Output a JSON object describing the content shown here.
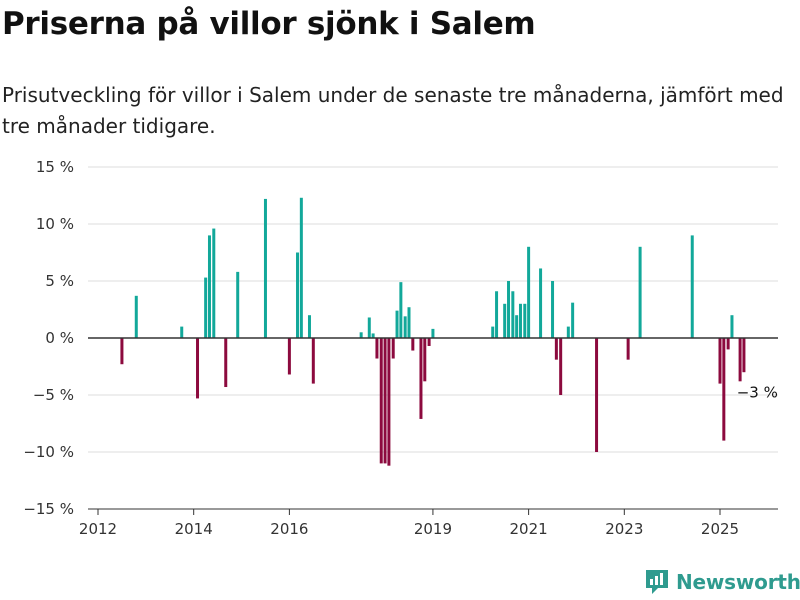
{
  "title": "Priserna på villor sjönk i Salem",
  "subtitle": "Prisutveckling för villor i Salem under de senaste tre månaderna, jämfört med tre månader tidigare.",
  "brand": {
    "name": "Newsworthy",
    "icon": "newsworthy-logo-icon"
  },
  "colors": {
    "positive": "#12a89a",
    "negative": "#8c0a3e",
    "grid": "#dddddd",
    "axis": "#333333"
  },
  "chart_data": {
    "type": "bar",
    "title": "Priserna på villor sjönk i Salem",
    "subtitle": "Prisutveckling för villor i Salem under de senaste tre månaderna, jämfört med tre månader tidigare.",
    "xlabel": "",
    "ylabel": "",
    "ylim": [
      -15,
      15
    ],
    "xlim": [
      2011.9,
      2026.2
    ],
    "y_ticks": [
      15,
      10,
      5,
      0,
      -5,
      -10,
      -15
    ],
    "y_tick_labels": [
      "15 %",
      "10 %",
      "5 %",
      "0 %",
      "−5 %",
      "−10 %",
      "−15 %"
    ],
    "x_ticks": [
      2012,
      2014,
      2016,
      2019,
      2021,
      2023,
      2025
    ],
    "x_tick_labels": [
      "2012",
      "2014",
      "2016",
      "2019",
      "2021",
      "2023",
      "2025"
    ],
    "grid": true,
    "annotation": {
      "text": "−3 %",
      "x": 2025.6,
      "y": -3
    },
    "x": [
      2012.5,
      2012.8,
      2013.75,
      2014.08,
      2014.25,
      2014.33,
      2014.42,
      2014.67,
      2014.92,
      2015.5,
      2016.0,
      2016.17,
      2016.25,
      2016.42,
      2016.5,
      2017.5,
      2017.67,
      2017.75,
      2017.83,
      2017.92,
      2018.0,
      2018.08,
      2018.17,
      2018.25,
      2018.33,
      2018.42,
      2018.5,
      2018.58,
      2018.75,
      2018.83,
      2018.92,
      2019.0,
      2020.25,
      2020.33,
      2020.5,
      2020.58,
      2020.67,
      2020.75,
      2020.83,
      2020.92,
      2021.0,
      2021.25,
      2021.5,
      2021.58,
      2021.67,
      2021.83,
      2021.92,
      2022.42,
      2023.08,
      2023.33,
      2024.42,
      2025.0,
      2025.08,
      2025.17,
      2025.25,
      2025.42,
      2025.5
    ],
    "values": [
      -2.3,
      3.7,
      1.0,
      -5.3,
      5.3,
      9.0,
      9.6,
      -4.3,
      5.8,
      12.2,
      -3.2,
      7.5,
      12.3,
      2.0,
      -4.0,
      0.5,
      1.8,
      0.4,
      -1.8,
      -11.0,
      -11.0,
      -11.2,
      -1.8,
      2.4,
      4.9,
      1.9,
      2.7,
      -1.1,
      -7.1,
      -3.8,
      -0.7,
      0.8,
      1.0,
      4.1,
      3.0,
      5.0,
      4.1,
      2.0,
      3.0,
      3.0,
      8.0,
      6.1,
      5.0,
      -1.9,
      -5.0,
      1.0,
      3.1,
      -10.0,
      -1.9,
      8.0,
      9.0,
      -4.0,
      -9.0,
      -1.0,
      2.0,
      -3.8,
      -3.0
    ]
  }
}
